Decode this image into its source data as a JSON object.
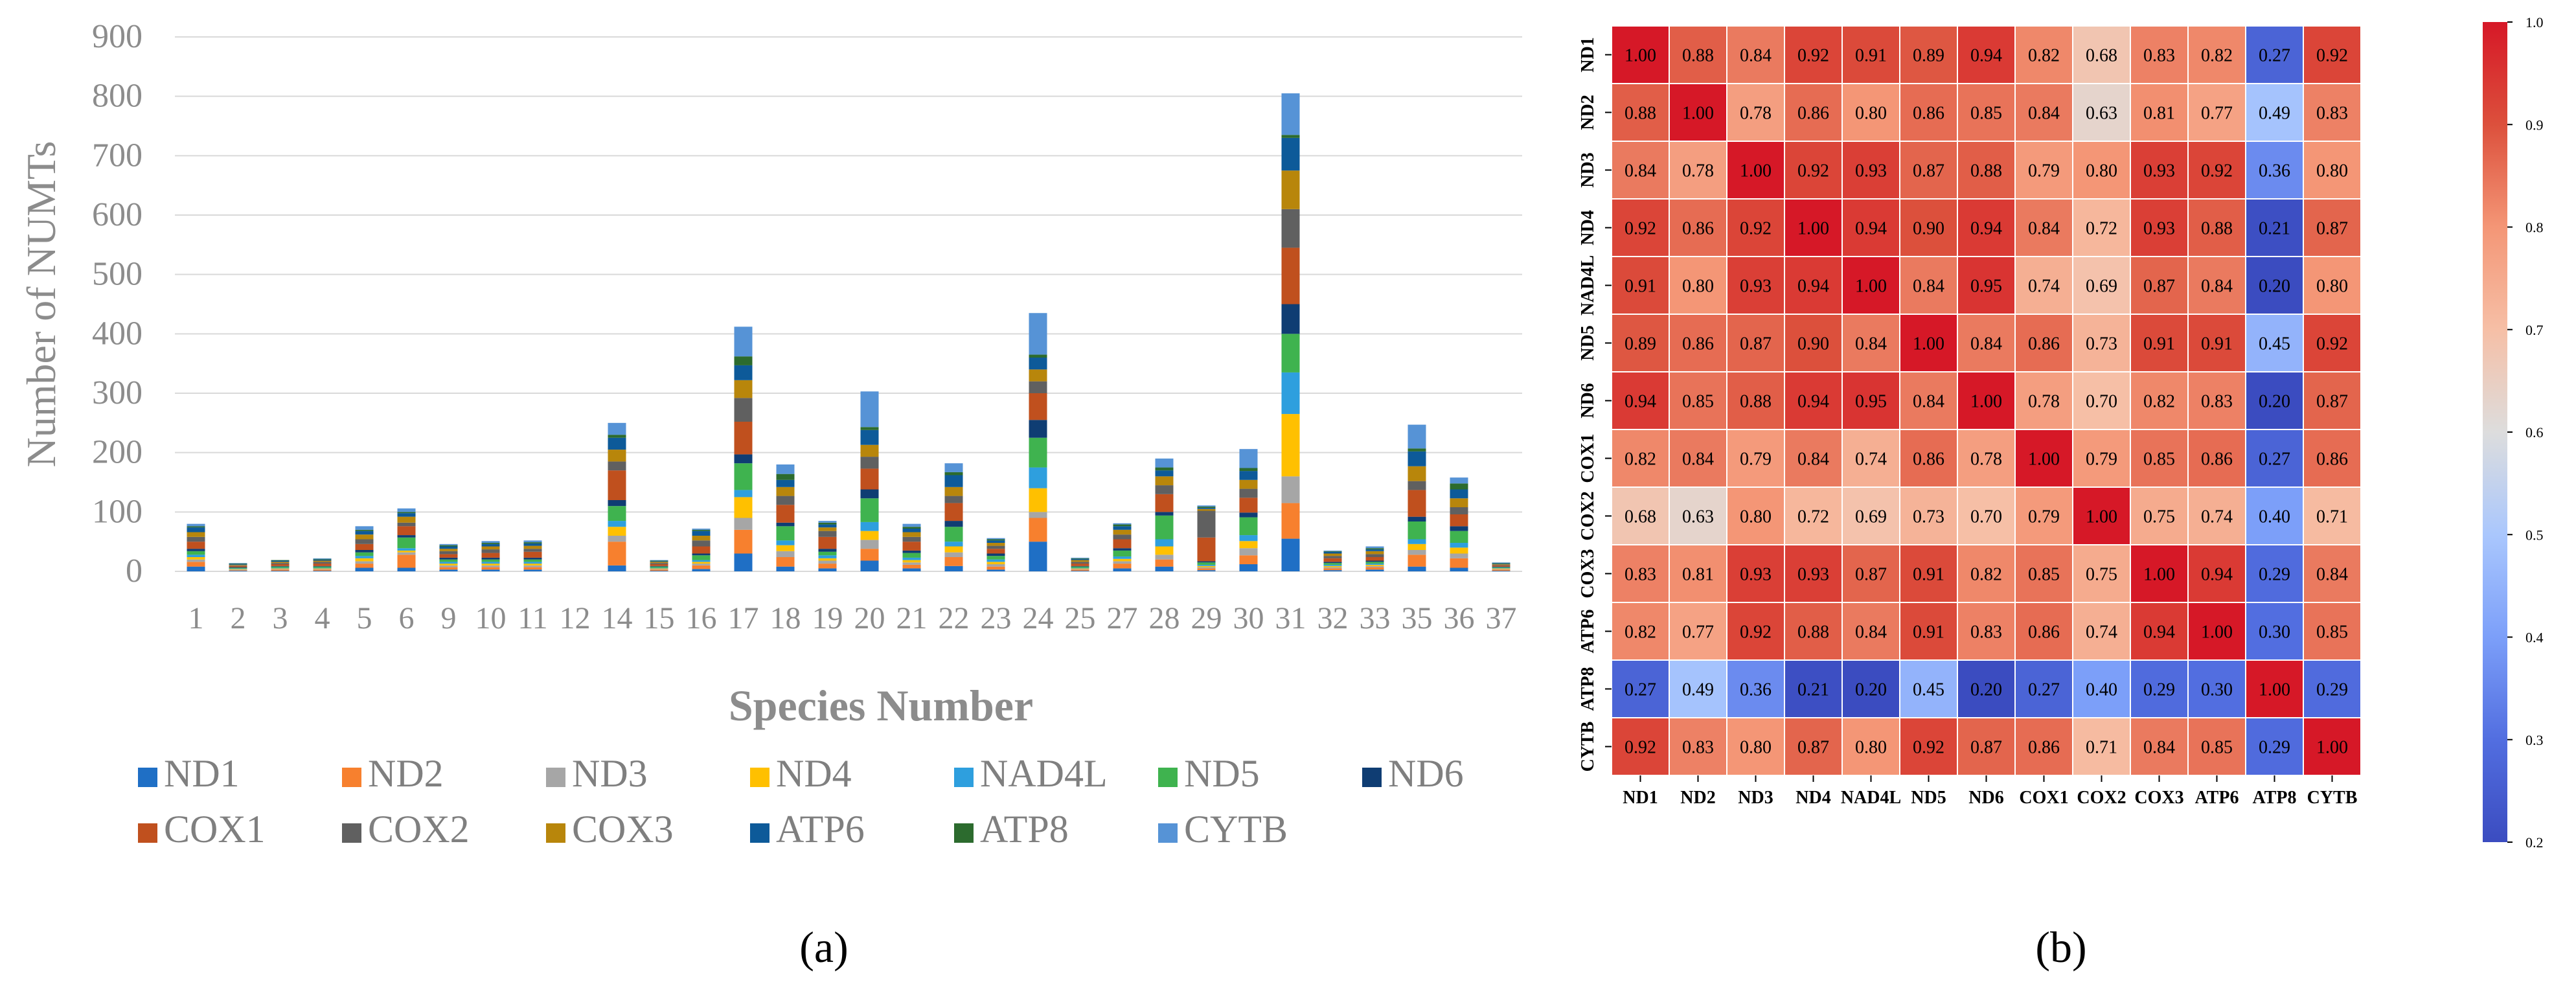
{
  "panels": {
    "a": "(a)",
    "b": "(b)"
  },
  "chart_data": [
    {
      "type": "bar",
      "stacked": true,
      "xlabel": "Species Number",
      "ylabel": "Number of NUMTs",
      "ylim": [
        0,
        900
      ],
      "yticks": [
        0,
        100,
        200,
        300,
        400,
        500,
        600,
        700,
        800,
        900
      ],
      "grid": true,
      "legend_position": "bottom",
      "categories": [
        "1",
        "2",
        "3",
        "4",
        "5",
        "6",
        "9",
        "10",
        "11",
        "12",
        "14",
        "15",
        "16",
        "17",
        "18",
        "19",
        "20",
        "21",
        "22",
        "23",
        "24",
        "25",
        "27",
        "28",
        "29",
        "30",
        "31",
        "32",
        "33",
        "35",
        "36",
        "37"
      ],
      "series": [
        {
          "name": "ND1",
          "color": "#1f6fc5",
          "values": [
            8,
            1,
            1,
            1,
            6,
            6,
            3,
            3,
            3,
            0,
            10,
            1,
            4,
            30,
            8,
            5,
            18,
            5,
            9,
            3,
            50,
            1,
            5,
            8,
            2,
            12,
            55,
            2,
            3,
            8,
            6,
            1
          ]
        },
        {
          "name": "ND2",
          "color": "#f7802e",
          "values": [
            8,
            1,
            2,
            2,
            7,
            22,
            4,
            4,
            4,
            0,
            40,
            2,
            6,
            40,
            16,
            8,
            20,
            6,
            15,
            5,
            40,
            2,
            8,
            12,
            3,
            15,
            60,
            3,
            4,
            20,
            16,
            2
          ]
        },
        {
          "name": "ND3",
          "color": "#a6a6a6",
          "values": [
            4,
            1,
            1,
            1,
            4,
            4,
            3,
            3,
            3,
            0,
            10,
            1,
            3,
            20,
            10,
            5,
            15,
            4,
            8,
            4,
            10,
            1,
            4,
            8,
            2,
            12,
            45,
            2,
            2,
            8,
            8,
            1
          ]
        },
        {
          "name": "ND4",
          "color": "#ffc000",
          "values": [
            4,
            1,
            1,
            1,
            5,
            3,
            3,
            3,
            3,
            0,
            15,
            1,
            3,
            35,
            10,
            4,
            15,
            4,
            10,
            4,
            40,
            1,
            4,
            14,
            2,
            12,
            105,
            2,
            2,
            10,
            10,
            1
          ]
        },
        {
          "name": "NAD4L",
          "color": "#2e9fde",
          "values": [
            4,
            1,
            1,
            1,
            4,
            4,
            3,
            3,
            3,
            0,
            10,
            1,
            3,
            12,
            8,
            5,
            15,
            4,
            8,
            4,
            35,
            1,
            4,
            12,
            2,
            10,
            70,
            2,
            2,
            8,
            8,
            1
          ]
        },
        {
          "name": "ND5",
          "color": "#3fb34f",
          "values": [
            6,
            1,
            2,
            2,
            6,
            18,
            4,
            4,
            4,
            0,
            25,
            2,
            8,
            45,
            24,
            6,
            40,
            8,
            25,
            6,
            50,
            2,
            10,
            40,
            4,
            30,
            65,
            3,
            3,
            30,
            20,
            1
          ]
        },
        {
          "name": "ND6",
          "color": "#0f3d73",
          "values": [
            4,
            1,
            1,
            1,
            4,
            4,
            3,
            3,
            3,
            0,
            10,
            1,
            3,
            15,
            6,
            5,
            15,
            4,
            10,
            4,
            30,
            1,
            4,
            6,
            2,
            8,
            50,
            2,
            2,
            8,
            8,
            1
          ]
        },
        {
          "name": "COX1",
          "color": "#c0501e",
          "values": [
            12,
            2,
            3,
            4,
            10,
            15,
            6,
            8,
            10,
            0,
            50,
            3,
            12,
            55,
            30,
            20,
            35,
            15,
            30,
            8,
            45,
            4,
            15,
            30,
            40,
            25,
            95,
            6,
            6,
            45,
            20,
            2
          ]
        },
        {
          "name": "COX2",
          "color": "#606060",
          "values": [
            8,
            1,
            2,
            3,
            8,
            6,
            5,
            6,
            5,
            0,
            15,
            2,
            10,
            40,
            15,
            10,
            20,
            8,
            12,
            5,
            20,
            3,
            8,
            15,
            45,
            15,
            65,
            4,
            5,
            15,
            12,
            1
          ]
        },
        {
          "name": "COX3",
          "color": "#b8860b",
          "values": [
            8,
            1,
            2,
            2,
            8,
            10,
            4,
            5,
            5,
            0,
            20,
            2,
            8,
            30,
            15,
            6,
            20,
            8,
            15,
            5,
            20,
            3,
            8,
            15,
            3,
            15,
            65,
            4,
            5,
            25,
            15,
            1
          ]
        },
        {
          "name": "ATP6",
          "color": "#0d5a99",
          "values": [
            8,
            1,
            2,
            2,
            6,
            6,
            4,
            4,
            4,
            0,
            20,
            1,
            8,
            25,
            12,
            5,
            25,
            6,
            20,
            4,
            20,
            2,
            6,
            10,
            2,
            15,
            55,
            3,
            3,
            25,
            15,
            1
          ]
        },
        {
          "name": "ATP8",
          "color": "#2c6b2e",
          "values": [
            2,
            1,
            1,
            1,
            2,
            2,
            2,
            2,
            2,
            0,
            5,
            1,
            2,
            15,
            10,
            3,
            5,
            3,
            5,
            2,
            5,
            1,
            3,
            5,
            2,
            5,
            5,
            1,
            2,
            5,
            10,
            1
          ]
        },
        {
          "name": "CYTB",
          "color": "#5693d6",
          "values": [
            4,
            1,
            0,
            1,
            6,
            6,
            2,
            3,
            3,
            0,
            20,
            1,
            2,
            50,
            16,
            3,
            60,
            5,
            15,
            2,
            70,
            1,
            2,
            15,
            2,
            32,
            70,
            1,
            3,
            40,
            10,
            1
          ]
        }
      ]
    },
    {
      "type": "heatmap",
      "labels": [
        "ND1",
        "ND2",
        "ND3",
        "ND4",
        "NAD4L",
        "ND5",
        "ND6",
        "COX1",
        "COX2",
        "COX3",
        "ATP6",
        "ATP8",
        "CYTB"
      ],
      "matrix": [
        [
          1.0,
          0.88,
          0.84,
          0.92,
          0.91,
          0.89,
          0.94,
          0.82,
          0.68,
          0.83,
          0.82,
          0.27,
          0.92
        ],
        [
          0.88,
          1.0,
          0.78,
          0.86,
          0.8,
          0.86,
          0.85,
          0.84,
          0.63,
          0.81,
          0.77,
          0.49,
          0.83
        ],
        [
          0.84,
          0.78,
          1.0,
          0.92,
          0.93,
          0.87,
          0.88,
          0.79,
          0.8,
          0.93,
          0.92,
          0.36,
          0.8
        ],
        [
          0.92,
          0.86,
          0.92,
          1.0,
          0.94,
          0.9,
          0.94,
          0.84,
          0.72,
          0.93,
          0.88,
          0.21,
          0.87
        ],
        [
          0.91,
          0.8,
          0.93,
          0.94,
          1.0,
          0.84,
          0.95,
          0.74,
          0.69,
          0.87,
          0.84,
          0.2,
          0.8
        ],
        [
          0.89,
          0.86,
          0.87,
          0.9,
          0.84,
          1.0,
          0.84,
          0.86,
          0.73,
          0.91,
          0.91,
          0.45,
          0.92
        ],
        [
          0.94,
          0.85,
          0.88,
          0.94,
          0.95,
          0.84,
          1.0,
          0.78,
          0.7,
          0.82,
          0.83,
          0.2,
          0.87
        ],
        [
          0.82,
          0.84,
          0.79,
          0.84,
          0.74,
          0.86,
          0.78,
          1.0,
          0.79,
          0.85,
          0.86,
          0.27,
          0.86
        ],
        [
          0.68,
          0.63,
          0.8,
          0.72,
          0.69,
          0.73,
          0.7,
          0.79,
          1.0,
          0.75,
          0.74,
          0.4,
          0.71
        ],
        [
          0.83,
          0.81,
          0.93,
          0.93,
          0.87,
          0.91,
          0.82,
          0.85,
          0.75,
          1.0,
          0.94,
          0.29,
          0.84
        ],
        [
          0.82,
          0.77,
          0.92,
          0.88,
          0.84,
          0.91,
          0.83,
          0.86,
          0.74,
          0.94,
          1.0,
          0.3,
          0.85
        ],
        [
          0.27,
          0.49,
          0.36,
          0.21,
          0.2,
          0.45,
          0.2,
          0.27,
          0.4,
          0.29,
          0.3,
          1.0,
          0.29
        ],
        [
          0.92,
          0.83,
          0.8,
          0.87,
          0.8,
          0.92,
          0.87,
          0.86,
          0.71,
          0.84,
          0.85,
          0.29,
          1.0
        ]
      ],
      "colorbar": {
        "ticks": [
          "0.2",
          "0.3",
          "0.4",
          "0.5",
          "0.6",
          "0.7",
          "0.8",
          "0.9",
          "1.0"
        ],
        "min": 0.2,
        "max": 1.0
      }
    }
  ]
}
